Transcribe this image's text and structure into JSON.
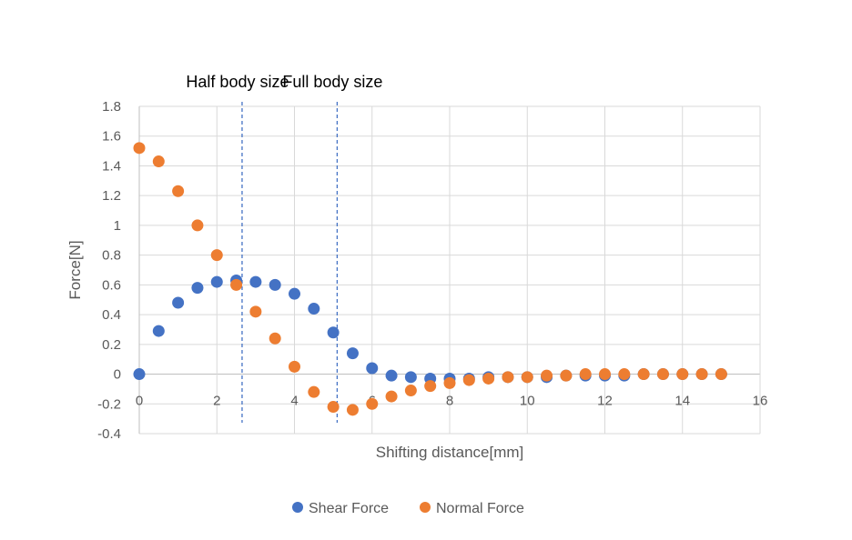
{
  "chart_data": {
    "type": "scatter",
    "title": "",
    "xlabel": "Shifting distance[mm]",
    "ylabel": "Force[N]",
    "xlim": [
      0,
      16
    ],
    "ylim": [
      -0.4,
      1.8
    ],
    "xticks": [
      0,
      2,
      4,
      6,
      8,
      10,
      12,
      14,
      16
    ],
    "yticks": [
      -0.4,
      -0.2,
      0,
      0.2,
      0.4,
      0.6,
      0.8,
      1,
      1.2,
      1.4,
      1.6,
      1.8
    ],
    "grid": true,
    "legend": "bottom",
    "x": [
      0,
      0.5,
      1,
      1.5,
      2,
      2.5,
      3,
      3.5,
      4,
      4.5,
      5,
      5.5,
      6,
      6.5,
      7,
      7.5,
      8,
      8.5,
      9,
      9.5,
      10,
      10.5,
      11,
      11.5,
      12,
      12.5,
      13,
      13.5,
      14,
      14.5,
      15
    ],
    "series": [
      {
        "name": "Shear Force",
        "color": "#4472C4",
        "values": [
          0,
          0.29,
          0.48,
          0.58,
          0.62,
          0.63,
          0.62,
          0.6,
          0.54,
          0.44,
          0.28,
          0.14,
          0.04,
          -0.01,
          -0.02,
          -0.03,
          -0.03,
          -0.03,
          -0.02,
          -0.02,
          -0.02,
          -0.02,
          -0.01,
          -0.01,
          -0.01,
          -0.01,
          0,
          0,
          0,
          0,
          0
        ]
      },
      {
        "name": "Normal Force",
        "color": "#ED7D31",
        "values": [
          1.52,
          1.43,
          1.23,
          1.0,
          0.8,
          0.6,
          0.42,
          0.24,
          0.05,
          -0.12,
          -0.22,
          -0.24,
          -0.2,
          -0.15,
          -0.11,
          -0.08,
          -0.06,
          -0.04,
          -0.03,
          -0.02,
          -0.02,
          -0.01,
          -0.01,
          0,
          0,
          0,
          0,
          0,
          0,
          0,
          0
        ]
      }
    ],
    "annotations": [
      {
        "text": "Half body size",
        "x": 2.65,
        "style": "dashed vertical line",
        "color": "#4472C4"
      },
      {
        "text": "Full body size",
        "x": 5.1,
        "style": "dashed vertical line",
        "color": "#4472C4"
      }
    ]
  }
}
